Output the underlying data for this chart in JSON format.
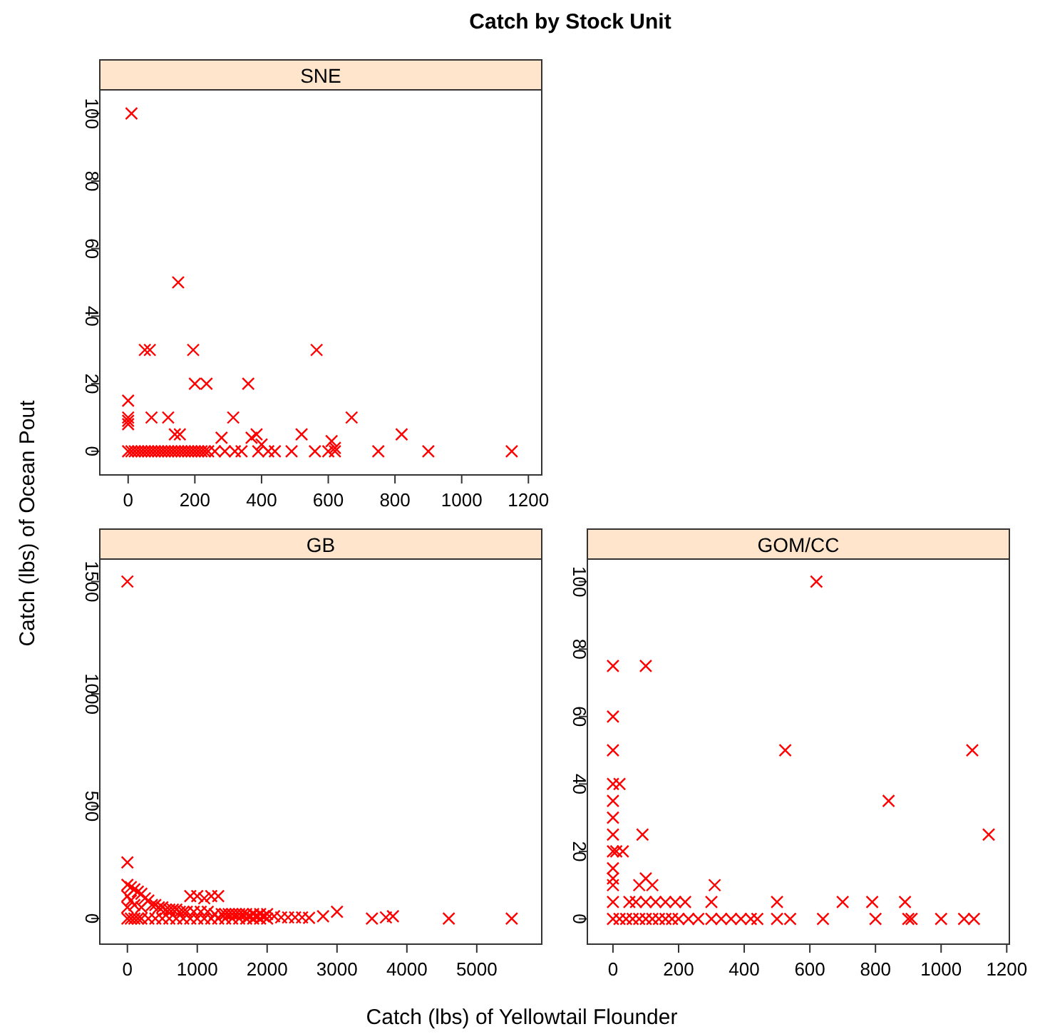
{
  "chart_data": [
    {
      "type": "scatter",
      "title": "SNE",
      "annotations": [
        "Catch by Stock Unit"
      ],
      "marker": "cross",
      "grid": false,
      "xlim": [
        -85,
        1240
      ],
      "ylim": [
        -7,
        107
      ],
      "xticks": [
        0,
        200,
        400,
        600,
        800,
        1000,
        1200
      ],
      "yticks": [
        0,
        20,
        40,
        60,
        80,
        100
      ],
      "series": [
        {
          "color": "#ff0000",
          "x": [
            10,
            150,
            50,
            65,
            195,
            565,
            200,
            235,
            360,
            0,
            0,
            0,
            0,
            70,
            120,
            315,
            670,
            140,
            155,
            280,
            370,
            385,
            520,
            820,
            400,
            610,
            620,
            0,
            10,
            20,
            30,
            40,
            50,
            60,
            70,
            80,
            90,
            100,
            110,
            120,
            130,
            140,
            150,
            160,
            170,
            180,
            190,
            200,
            210,
            220,
            230,
            240,
            260,
            290,
            320,
            340,
            390,
            420,
            440,
            490,
            560,
            600,
            620,
            750,
            900,
            1150
          ],
          "values": [
            100,
            50,
            30,
            30,
            30,
            30,
            20,
            20,
            20,
            15,
            10,
            9,
            8,
            10,
            10,
            10,
            10,
            5,
            5,
            4,
            4,
            5,
            5,
            5,
            2,
            3,
            1,
            0,
            0,
            0,
            0,
            0,
            0,
            0,
            0,
            0,
            0,
            0,
            0,
            0,
            0,
            0,
            0,
            0,
            0,
            0,
            0,
            0,
            0,
            0,
            0,
            0,
            0,
            0,
            0,
            0,
            0,
            0,
            0,
            0,
            0,
            0,
            0,
            0,
            0,
            0
          ]
        }
      ]
    },
    {
      "type": "scatter",
      "title": "GB",
      "xlabel": "Catch (lbs) of Yellowtail Flounder",
      "ylabel": "Catch (lbs) of Ocean Pout",
      "marker": "cross",
      "grid": false,
      "xlim": [
        -395,
        5930
      ],
      "ylim": [
        -114,
        1600
      ],
      "xticks": [
        0,
        1000,
        2000,
        3000,
        4000,
        5000
      ],
      "yticks": [
        0,
        500,
        1000,
        1500
      ],
      "series": [
        {
          "color": "#ff0000",
          "x": [
            0,
            0,
            0,
            0,
            0,
            0,
            50,
            50,
            50,
            100,
            100,
            100,
            150,
            150,
            200,
            200,
            200,
            250,
            300,
            300,
            350,
            400,
            400,
            450,
            500,
            500,
            550,
            600,
            600,
            650,
            700,
            700,
            750,
            800,
            800,
            850,
            900,
            900,
            950,
            1000,
            1000,
            1050,
            1100,
            1100,
            1150,
            1200,
            1200,
            1250,
            1300,
            1300,
            1350,
            1400,
            1400,
            1450,
            1500,
            1500,
            1550,
            1600,
            1600,
            1650,
            1700,
            1700,
            1750,
            1800,
            1800,
            1850,
            1900,
            1900,
            1950,
            2000,
            2000,
            2100,
            2200,
            2300,
            2400,
            2500,
            2600,
            2800,
            3000,
            3500,
            3700,
            3800,
            4600,
            5500
          ],
          "values": [
            1500,
            250,
            150,
            100,
            50,
            0,
            140,
            80,
            0,
            130,
            60,
            0,
            120,
            0,
            110,
            50,
            0,
            90,
            80,
            0,
            60,
            60,
            0,
            50,
            50,
            0,
            40,
            40,
            0,
            40,
            40,
            0,
            30,
            30,
            0,
            30,
            100,
            0,
            30,
            100,
            0,
            30,
            90,
            0,
            30,
            100,
            0,
            20,
            100,
            0,
            20,
            20,
            0,
            20,
            20,
            0,
            20,
            20,
            0,
            20,
            20,
            0,
            10,
            20,
            0,
            10,
            20,
            0,
            10,
            20,
            0,
            10,
            5,
            5,
            5,
            5,
            3,
            10,
            30,
            0,
            5,
            10,
            0,
            0
          ]
        }
      ]
    },
    {
      "type": "scatter",
      "title": "GOM/CC",
      "marker": "cross",
      "grid": false,
      "xlim": [
        -78,
        1208
      ],
      "ylim": [
        -7.5,
        106.7
      ],
      "xticks": [
        0,
        200,
        400,
        600,
        800,
        1000,
        1200
      ],
      "yticks": [
        0,
        20,
        40,
        60,
        80,
        100
      ],
      "series": [
        {
          "color": "#ff0000",
          "x": [
            620,
            0,
            100,
            0,
            0,
            525,
            1095,
            0,
            20,
            0,
            840,
            0,
            0,
            90,
            1145,
            0,
            10,
            30,
            0,
            0,
            0,
            80,
            100,
            120,
            310,
            0,
            50,
            70,
            100,
            130,
            160,
            190,
            220,
            300,
            500,
            700,
            790,
            890,
            0,
            20,
            40,
            60,
            80,
            100,
            120,
            140,
            160,
            180,
            200,
            230,
            260,
            300,
            330,
            360,
            390,
            420,
            440,
            500,
            540,
            640,
            800,
            900,
            910,
            1000,
            1070,
            1100
          ],
          "values": [
            100,
            75,
            75,
            60,
            50,
            50,
            50,
            40,
            40,
            35,
            35,
            30,
            25,
            25,
            25,
            20,
            20,
            20,
            15,
            12,
            10,
            10,
            12,
            10,
            10,
            5,
            5,
            5,
            5,
            5,
            5,
            5,
            5,
            5,
            5,
            5,
            5,
            5,
            0,
            0,
            0,
            0,
            0,
            0,
            0,
            0,
            0,
            0,
            0,
            0,
            0,
            0,
            0,
            0,
            0,
            0,
            0,
            0,
            0,
            0,
            0,
            0,
            0,
            0,
            0,
            0
          ]
        }
      ]
    }
  ]
}
